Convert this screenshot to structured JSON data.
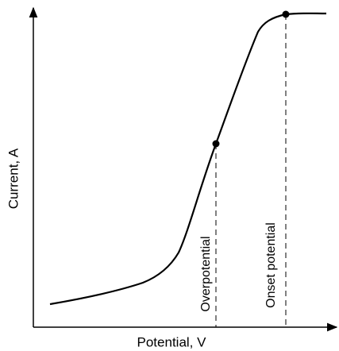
{
  "axes": {
    "x_label": "Potential, V",
    "y_label": "Current, A"
  },
  "annotations": [
    "Overpotential",
    "Onset potential"
  ]
}
